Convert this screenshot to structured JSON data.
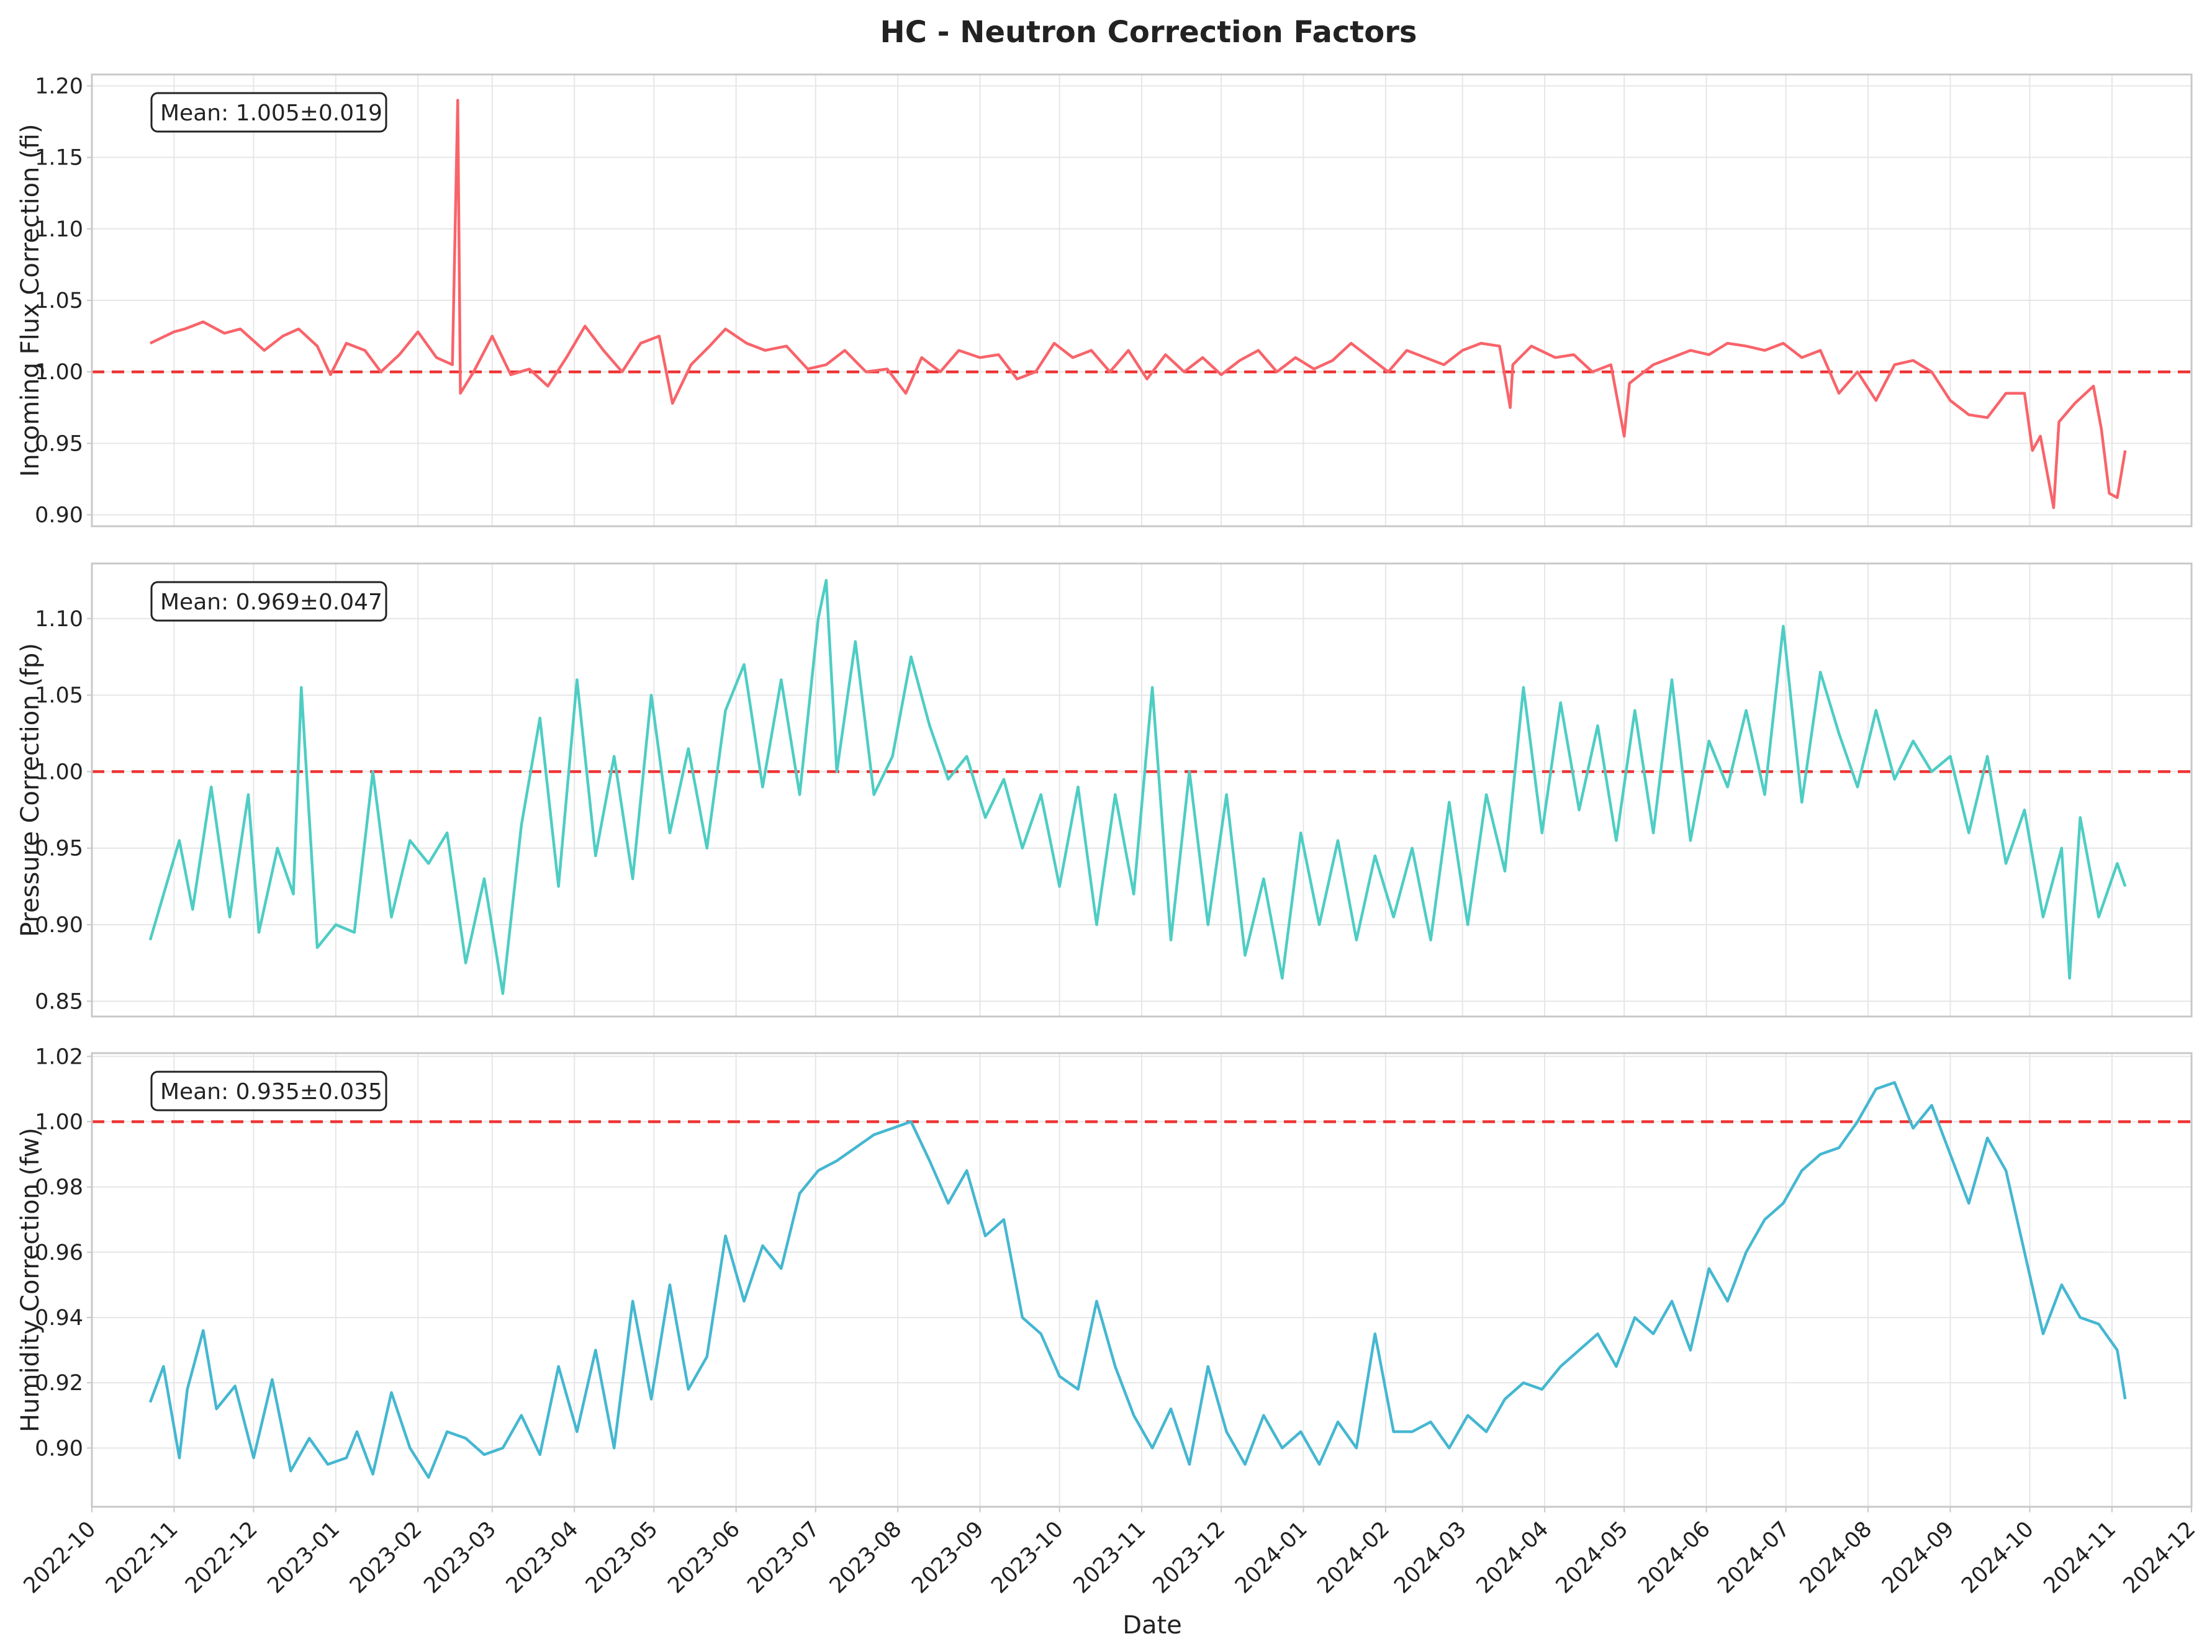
{
  "figure": {
    "title": "HC - Neutron Correction Factors",
    "xlabel": "Date"
  },
  "colors": {
    "fi": "#f8646a",
    "fp": "#4ecdc4",
    "fw": "#45b7d1",
    "reference": "#ee3333",
    "grid": "#e6e6e6",
    "frame": "#c8c8c8"
  },
  "x_axis": {
    "ticks": [
      "2022-10",
      "2022-11",
      "2022-12",
      "2023-01",
      "2023-02",
      "2023-03",
      "2023-04",
      "2023-05",
      "2023-06",
      "2023-07",
      "2023-08",
      "2023-09",
      "2023-10",
      "2023-11",
      "2023-12",
      "2024-01",
      "2024-02",
      "2024-03",
      "2024-04",
      "2024-05",
      "2024-06",
      "2024-07",
      "2024-08",
      "2024-09",
      "2024-10",
      "2024-11",
      "2024-12"
    ],
    "range": [
      "2022-10-01",
      "2024-12-01"
    ]
  },
  "chart_data": [
    {
      "type": "line",
      "ylabel": "Incoming Flux Correction (fi)",
      "annotation": "Mean: 1.005±0.019",
      "reference_line": 1.0,
      "ylim": [
        0.892,
        1.208
      ],
      "yticks": [
        "0.90",
        "0.95",
        "1.00",
        "1.05",
        "1.10",
        "1.15",
        "1.20"
      ],
      "series": [
        {
          "color": "#f8646a",
          "x": [
            "2022-10-23",
            "2022-11-01",
            "2022-11-05",
            "2022-11-12",
            "2022-11-20",
            "2022-11-26",
            "2022-12-05",
            "2022-12-12",
            "2022-12-18",
            "2022-12-25",
            "2022-12-30",
            "2023-01-05",
            "2023-01-12",
            "2023-01-18",
            "2023-01-25",
            "2023-02-01",
            "2023-02-08",
            "2023-02-14",
            "2023-02-16",
            "2023-02-17",
            "2023-02-18",
            "2023-02-22",
            "2023-03-01",
            "2023-03-08",
            "2023-03-15",
            "2023-03-22",
            "2023-03-29",
            "2023-04-05",
            "2023-04-12",
            "2023-04-19",
            "2023-04-26",
            "2023-05-03",
            "2023-05-08",
            "2023-05-15",
            "2023-05-22",
            "2023-05-28",
            "2023-06-05",
            "2023-06-12",
            "2023-06-20",
            "2023-06-28",
            "2023-07-05",
            "2023-07-12",
            "2023-07-20",
            "2023-07-28",
            "2023-08-04",
            "2023-08-10",
            "2023-08-17",
            "2023-08-24",
            "2023-09-01",
            "2023-09-08",
            "2023-09-15",
            "2023-09-22",
            "2023-09-29",
            "2023-10-06",
            "2023-10-13",
            "2023-10-20",
            "2023-10-27",
            "2023-11-03",
            "2023-11-10",
            "2023-11-17",
            "2023-11-24",
            "2023-12-01",
            "2023-12-08",
            "2023-12-15",
            "2023-12-22",
            "2023-12-29",
            "2024-01-05",
            "2024-01-12",
            "2024-01-19",
            "2024-01-26",
            "2024-02-02",
            "2024-02-09",
            "2024-02-16",
            "2024-02-23",
            "2024-03-01",
            "2024-03-08",
            "2024-03-15",
            "2024-03-19",
            "2024-03-20",
            "2024-03-27",
            "2024-04-05",
            "2024-04-12",
            "2024-04-19",
            "2024-04-26",
            "2024-05-01",
            "2024-05-03",
            "2024-05-05",
            "2024-05-12",
            "2024-05-19",
            "2024-05-26",
            "2024-06-02",
            "2024-06-09",
            "2024-06-16",
            "2024-06-23",
            "2024-06-30",
            "2024-07-07",
            "2024-07-14",
            "2024-07-21",
            "2024-07-28",
            "2024-08-04",
            "2024-08-11",
            "2024-08-18",
            "2024-08-25",
            "2024-09-01",
            "2024-09-08",
            "2024-09-15",
            "2024-09-22",
            "2024-09-29",
            "2024-10-02",
            "2024-10-05",
            "2024-10-10",
            "2024-10-12",
            "2024-10-18",
            "2024-10-25",
            "2024-10-28",
            "2024-10-31",
            "2024-11-03",
            "2024-11-06"
          ],
          "y": [
            1.02,
            1.028,
            1.03,
            1.035,
            1.027,
            1.03,
            1.015,
            1.025,
            1.03,
            1.018,
            0.998,
            1.02,
            1.015,
            1.0,
            1.012,
            1.028,
            1.01,
            1.005,
            1.19,
            0.985,
            0.988,
            1.0,
            1.025,
            0.998,
            1.002,
            0.99,
            1.01,
            1.032,
            1.015,
            1.0,
            1.02,
            1.025,
            0.978,
            1.005,
            1.018,
            1.03,
            1.02,
            1.015,
            1.018,
            1.002,
            1.005,
            1.015,
            1.0,
            1.002,
            0.985,
            1.01,
            1.0,
            1.015,
            1.01,
            1.012,
            0.995,
            1.0,
            1.02,
            1.01,
            1.015,
            1.0,
            1.015,
            0.995,
            1.012,
            1.0,
            1.01,
            0.998,
            1.008,
            1.015,
            1.0,
            1.01,
            1.002,
            1.008,
            1.02,
            1.01,
            1.0,
            1.015,
            1.01,
            1.005,
            1.015,
            1.02,
            1.018,
            0.975,
            1.005,
            1.018,
            1.01,
            1.012,
            1.0,
            1.005,
            0.955,
            0.992,
            0.995,
            1.005,
            1.01,
            1.015,
            1.012,
            1.02,
            1.018,
            1.015,
            1.02,
            1.01,
            1.015,
            0.985,
            1.0,
            0.98,
            1.005,
            1.008,
            1.0,
            0.98,
            0.97,
            0.968,
            0.985,
            0.985,
            0.945,
            0.955,
            0.905,
            0.965,
            0.978,
            0.99,
            0.96,
            0.915,
            0.912,
            0.945
          ]
        }
      ]
    },
    {
      "type": "line",
      "ylabel": "Pressure Correction (fp)",
      "annotation": "Mean: 0.969±0.047",
      "reference_line": 1.0,
      "ylim": [
        0.84,
        1.136
      ],
      "yticks": [
        "0.85",
        "0.90",
        "0.95",
        "1.00",
        "1.05",
        "1.10"
      ],
      "series": [
        {
          "color": "#4ecdc4",
          "x": [
            "2022-10-23",
            "2022-11-03",
            "2022-11-08",
            "2022-11-15",
            "2022-11-22",
            "2022-11-29",
            "2022-12-03",
            "2022-12-10",
            "2022-12-16",
            "2022-12-19",
            "2022-12-25",
            "2023-01-01",
            "2023-01-08",
            "2023-01-15",
            "2023-01-22",
            "2023-01-29",
            "2023-02-05",
            "2023-02-12",
            "2023-02-19",
            "2023-02-26",
            "2023-03-05",
            "2023-03-12",
            "2023-03-19",
            "2023-03-26",
            "2023-04-02",
            "2023-04-09",
            "2023-04-16",
            "2023-04-23",
            "2023-04-30",
            "2023-05-07",
            "2023-05-14",
            "2023-05-21",
            "2023-05-28",
            "2023-06-04",
            "2023-06-11",
            "2023-06-18",
            "2023-06-25",
            "2023-07-02",
            "2023-07-05",
            "2023-07-09",
            "2023-07-16",
            "2023-07-23",
            "2023-07-30",
            "2023-08-06",
            "2023-08-13",
            "2023-08-20",
            "2023-08-27",
            "2023-09-03",
            "2023-09-10",
            "2023-09-17",
            "2023-09-24",
            "2023-10-01",
            "2023-10-08",
            "2023-10-15",
            "2023-10-22",
            "2023-10-29",
            "2023-11-05",
            "2023-11-12",
            "2023-11-19",
            "2023-11-26",
            "2023-12-03",
            "2023-12-10",
            "2023-12-17",
            "2023-12-24",
            "2023-12-31",
            "2024-01-07",
            "2024-01-14",
            "2024-01-21",
            "2024-01-28",
            "2024-02-04",
            "2024-02-11",
            "2024-02-18",
            "2024-02-25",
            "2024-03-03",
            "2024-03-10",
            "2024-03-17",
            "2024-03-24",
            "2024-03-31",
            "2024-04-07",
            "2024-04-14",
            "2024-04-21",
            "2024-04-28",
            "2024-05-05",
            "2024-05-12",
            "2024-05-19",
            "2024-05-26",
            "2024-06-02",
            "2024-06-09",
            "2024-06-16",
            "2024-06-23",
            "2024-06-30",
            "2024-07-07",
            "2024-07-14",
            "2024-07-21",
            "2024-07-28",
            "2024-08-04",
            "2024-08-11",
            "2024-08-18",
            "2024-08-25",
            "2024-09-01",
            "2024-09-08",
            "2024-09-15",
            "2024-09-22",
            "2024-09-29",
            "2024-10-06",
            "2024-10-13",
            "2024-10-16",
            "2024-10-20",
            "2024-10-27",
            "2024-11-03",
            "2024-11-06"
          ],
          "y": [
            0.89,
            0.955,
            0.91,
            0.99,
            0.905,
            0.985,
            0.895,
            0.95,
            0.92,
            1.055,
            0.885,
            0.9,
            0.895,
            1.0,
            0.905,
            0.955,
            0.94,
            0.96,
            0.875,
            0.93,
            0.855,
            0.965,
            1.035,
            0.925,
            1.06,
            0.945,
            1.01,
            0.93,
            1.05,
            0.96,
            1.015,
            0.95,
            1.04,
            1.07,
            0.99,
            1.06,
            0.985,
            1.1,
            1.125,
            1.0,
            1.085,
            0.985,
            1.01,
            1.075,
            1.03,
            0.995,
            1.01,
            0.97,
            0.995,
            0.95,
            0.985,
            0.925,
            0.99,
            0.9,
            0.985,
            0.92,
            1.055,
            0.89,
            1.0,
            0.9,
            0.985,
            0.88,
            0.93,
            0.865,
            0.96,
            0.9,
            0.955,
            0.89,
            0.945,
            0.905,
            0.95,
            0.89,
            0.98,
            0.9,
            0.985,
            0.935,
            1.055,
            0.96,
            1.045,
            0.975,
            1.03,
            0.955,
            1.04,
            0.96,
            1.06,
            0.955,
            1.02,
            0.99,
            1.04,
            0.985,
            1.095,
            0.98,
            1.065,
            1.025,
            0.99,
            1.04,
            0.995,
            1.02,
            1.0,
            1.01,
            0.96,
            1.01,
            0.94,
            0.975,
            0.905,
            0.95,
            0.865,
            0.97,
            0.905,
            0.94,
            0.925
          ]
        }
      ]
    },
    {
      "type": "line",
      "ylabel": "Humidity Correction (fw)",
      "annotation": "Mean: 0.935±0.035",
      "reference_line": 1.0,
      "ylim": [
        0.882,
        1.021
      ],
      "yticks": [
        "0.90",
        "0.92",
        "0.94",
        "0.96",
        "0.98",
        "1.00",
        "1.02"
      ],
      "series": [
        {
          "color": "#45b7d1",
          "x": [
            "2022-10-23",
            "2022-10-28",
            "2022-11-03",
            "2022-11-06",
            "2022-11-12",
            "2022-11-17",
            "2022-11-24",
            "2022-12-01",
            "2022-12-08",
            "2022-12-15",
            "2022-12-22",
            "2022-12-29",
            "2023-01-05",
            "2023-01-09",
            "2023-01-15",
            "2023-01-22",
            "2023-01-29",
            "2023-02-05",
            "2023-02-12",
            "2023-02-19",
            "2023-02-26",
            "2023-03-05",
            "2023-03-12",
            "2023-03-19",
            "2023-03-26",
            "2023-04-02",
            "2023-04-09",
            "2023-04-16",
            "2023-04-23",
            "2023-04-30",
            "2023-05-07",
            "2023-05-14",
            "2023-05-21",
            "2023-05-28",
            "2023-06-04",
            "2023-06-11",
            "2023-06-18",
            "2023-06-25",
            "2023-07-02",
            "2023-07-09",
            "2023-07-16",
            "2023-07-23",
            "2023-07-30",
            "2023-08-06",
            "2023-08-13",
            "2023-08-20",
            "2023-08-27",
            "2023-09-03",
            "2023-09-10",
            "2023-09-17",
            "2023-09-24",
            "2023-10-01",
            "2023-10-08",
            "2023-10-15",
            "2023-10-22",
            "2023-10-29",
            "2023-11-05",
            "2023-11-12",
            "2023-11-19",
            "2023-11-26",
            "2023-12-03",
            "2023-12-10",
            "2023-12-17",
            "2023-12-24",
            "2023-12-31",
            "2024-01-07",
            "2024-01-14",
            "2024-01-21",
            "2024-01-28",
            "2024-02-04",
            "2024-02-11",
            "2024-02-18",
            "2024-02-25",
            "2024-03-03",
            "2024-03-10",
            "2024-03-17",
            "2024-03-24",
            "2024-03-31",
            "2024-04-07",
            "2024-04-14",
            "2024-04-21",
            "2024-04-28",
            "2024-05-05",
            "2024-05-12",
            "2024-05-19",
            "2024-05-26",
            "2024-06-02",
            "2024-06-09",
            "2024-06-16",
            "2024-06-23",
            "2024-06-30",
            "2024-07-07",
            "2024-07-14",
            "2024-07-21",
            "2024-07-28",
            "2024-08-04",
            "2024-08-11",
            "2024-08-18",
            "2024-08-25",
            "2024-09-01",
            "2024-09-08",
            "2024-09-15",
            "2024-09-22",
            "2024-09-29",
            "2024-10-06",
            "2024-10-13",
            "2024-10-20",
            "2024-10-27",
            "2024-11-03",
            "2024-11-06"
          ],
          "y": [
            0.914,
            0.925,
            0.897,
            0.918,
            0.936,
            0.912,
            0.919,
            0.897,
            0.921,
            0.893,
            0.903,
            0.895,
            0.897,
            0.905,
            0.892,
            0.917,
            0.9,
            0.891,
            0.905,
            0.903,
            0.898,
            0.9,
            0.91,
            0.898,
            0.925,
            0.905,
            0.93,
            0.9,
            0.945,
            0.915,
            0.95,
            0.918,
            0.928,
            0.965,
            0.945,
            0.962,
            0.955,
            0.978,
            0.985,
            0.988,
            0.992,
            0.996,
            0.998,
            1.0,
            0.988,
            0.975,
            0.985,
            0.965,
            0.97,
            0.94,
            0.935,
            0.922,
            0.918,
            0.945,
            0.925,
            0.91,
            0.9,
            0.912,
            0.895,
            0.925,
            0.905,
            0.895,
            0.91,
            0.9,
            0.905,
            0.895,
            0.908,
            0.9,
            0.935,
            0.905,
            0.905,
            0.908,
            0.9,
            0.91,
            0.905,
            0.915,
            0.92,
            0.918,
            0.925,
            0.93,
            0.935,
            0.925,
            0.94,
            0.935,
            0.945,
            0.93,
            0.955,
            0.945,
            0.96,
            0.97,
            0.975,
            0.985,
            0.99,
            0.992,
            1.0,
            1.01,
            1.012,
            0.998,
            1.005,
            0.99,
            0.975,
            0.995,
            0.985,
            0.96,
            0.935,
            0.95,
            0.94,
            0.938,
            0.93,
            0.915
          ]
        }
      ]
    }
  ]
}
